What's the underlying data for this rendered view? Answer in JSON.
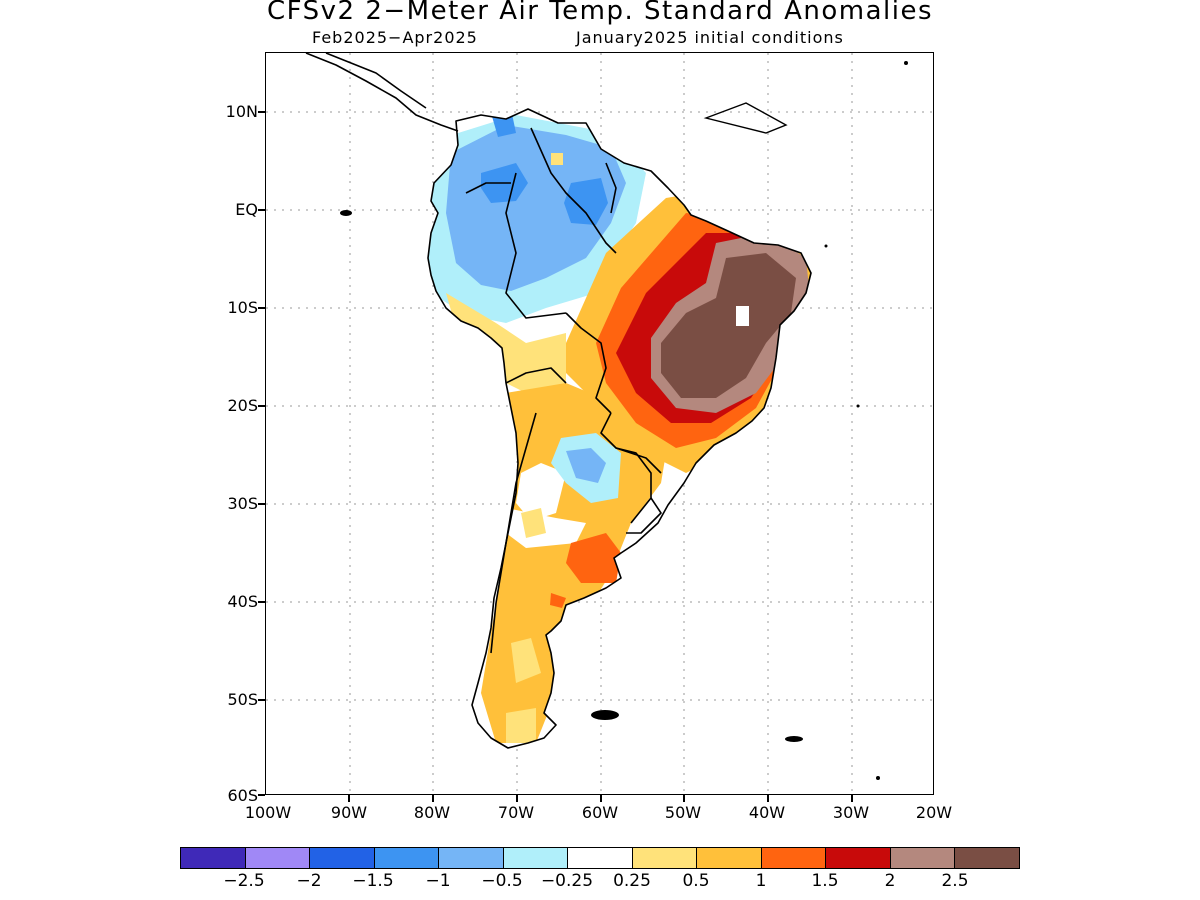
{
  "title": "CFSv2 2−Meter Air Temp. Standard Anomalies",
  "subtitle_period": "Feb2025−Apr2025",
  "subtitle_init": "January2025 initial conditions",
  "lat_labels": [
    "10N",
    "EQ",
    "10S",
    "20S",
    "30S",
    "40S",
    "50S",
    "60S"
  ],
  "lon_labels": [
    "100W",
    "90W",
    "80W",
    "70W",
    "60W",
    "50W",
    "40W",
    "30W",
    "20W"
  ],
  "colorbar": {
    "colors": [
      "#3f29b8",
      "#a088f6",
      "#2262e6",
      "#3d94f2",
      "#75b5f6",
      "#b0effa",
      "#ffffff",
      "#ffe27a",
      "#ffc03a",
      "#ff6410",
      "#c80a0a",
      "#b4887e",
      "#7a4e44"
    ],
    "labels": [
      "−2.5",
      "−2",
      "−1.5",
      "−1",
      "−0.5",
      "−0.25",
      "0.25",
      "0.5",
      "1",
      "1.5",
      "2",
      "2.5"
    ]
  },
  "map_colors": {
    "white": "#ffffff",
    "light_cyan": "#b0effa",
    "light_blue": "#75b5f6",
    "mid_blue": "#3d94f2",
    "pale_yellow": "#ffe27a",
    "yellow_orange": "#ffc03a",
    "orange": "#ff6410",
    "red": "#c80a0a",
    "tan": "#b4887e",
    "brown": "#7a4e44",
    "coast": "#000000"
  }
}
